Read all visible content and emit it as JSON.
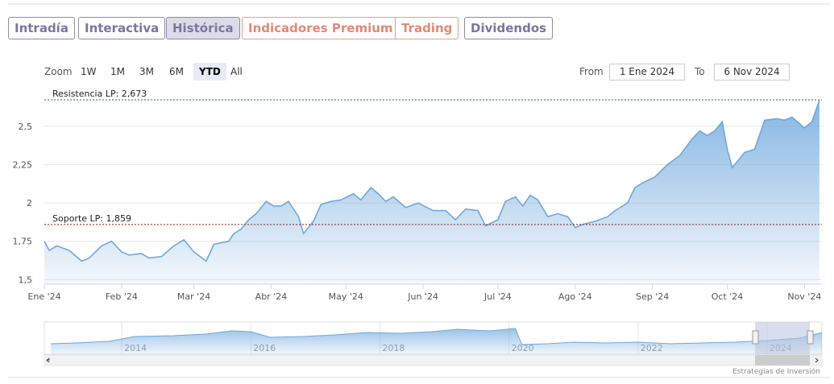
{
  "tabs": [
    "Intradía",
    "Interactiva",
    "Histórica",
    "Indicadores Premium",
    "Trading",
    "Dividendos"
  ],
  "active_tab": 2,
  "zoom": {
    "label": "Zoom",
    "buttons": [
      "1W",
      "1M",
      "3M",
      "6M",
      "YTD",
      "All"
    ],
    "active": 4
  },
  "range": {
    "from_label": "From",
    "from": "1 Ene 2024",
    "to_label": "To",
    "to": "6 Nov 2024"
  },
  "chart_data": {
    "type": "area",
    "color": "#6fa8dc",
    "x": [
      0,
      2,
      5,
      10,
      15,
      18,
      23,
      27,
      31,
      34,
      39,
      42,
      47,
      52,
      56,
      60,
      65,
      68,
      74,
      76,
      79,
      82,
      85,
      89,
      92,
      95,
      98,
      102,
      104,
      108,
      111,
      115,
      119,
      124,
      127,
      131,
      134,
      137,
      140,
      145,
      150,
      156,
      161,
      165,
      169,
      174,
      177,
      182,
      185,
      189,
      192,
      195,
      198,
      202,
      206,
      210,
      213,
      216,
      221,
      226,
      229,
      234,
      237,
      240,
      245,
      250,
      255,
      260,
      263,
      266,
      269,
      272,
      274,
      276,
      281,
      285,
      289,
      294,
      297,
      300,
      305,
      308,
      311
    ],
    "values": [
      1.75,
      1.69,
      1.72,
      1.69,
      1.62,
      1.64,
      1.72,
      1.75,
      1.68,
      1.66,
      1.67,
      1.64,
      1.65,
      1.72,
      1.76,
      1.68,
      1.62,
      1.73,
      1.75,
      1.8,
      1.83,
      1.89,
      1.93,
      2.01,
      1.98,
      1.98,
      2.01,
      1.91,
      1.8,
      1.88,
      1.99,
      2.01,
      2.02,
      2.06,
      2.02,
      2.1,
      2.06,
      2.01,
      2.04,
      1.97,
      2.0,
      1.95,
      1.95,
      1.89,
      1.96,
      1.95,
      1.85,
      1.89,
      2.01,
      2.04,
      1.98,
      2.05,
      2.02,
      1.91,
      1.93,
      1.91,
      1.84,
      1.86,
      1.88,
      1.91,
      1.95,
      2.0,
      2.1,
      2.13,
      2.17,
      2.25,
      2.31,
      2.42,
      2.47,
      2.44,
      2.47,
      2.53,
      2.35,
      2.23,
      2.33,
      2.35,
      2.54,
      2.55,
      2.54,
      2.56,
      2.49,
      2.53,
      2.67
    ],
    "xlim": [
      0,
      312
    ],
    "xticks": [
      {
        "value": 0,
        "label": "Ene '24"
      },
      {
        "value": 31,
        "label": "Feb '24"
      },
      {
        "value": 60,
        "label": "Mar '24"
      },
      {
        "value": 91,
        "label": "Abr '24"
      },
      {
        "value": 121,
        "label": "May '24"
      },
      {
        "value": 152,
        "label": "Jun '24"
      },
      {
        "value": 182,
        "label": "Jul '24"
      },
      {
        "value": 213,
        "label": "Ago '24"
      },
      {
        "value": 244,
        "label": "Sep '24"
      },
      {
        "value": 274,
        "label": "Oct '24"
      },
      {
        "value": 305,
        "label": "Nov '24"
      }
    ],
    "ylim": [
      1.47,
      2.72
    ],
    "yticks": [
      {
        "value": 1.5,
        "label": "1,5"
      },
      {
        "value": 1.75,
        "label": "1,75"
      },
      2,
      {
        "value": 2.25,
        "label": "2,25"
      },
      {
        "value": 2.5,
        "label": "2,5"
      }
    ],
    "grid": true,
    "annotations": [
      {
        "label": "Resistencia LP: 2,673",
        "value": 2.673,
        "color": "#2e6b3a"
      },
      {
        "label": "Soporte LP: 1,859",
        "value": 1.859,
        "color": "#8b1a1a"
      }
    ]
  },
  "navigator": {
    "x": [
      2012.9,
      2013.3,
      2013.8,
      2014.2,
      2014.8,
      2015.3,
      2015.7,
      2016.0,
      2016.3,
      2016.8,
      2017.3,
      2017.8,
      2018.3,
      2018.8,
      2019.2,
      2019.7,
      2020.1,
      2020.2,
      2020.6,
      2021.0,
      2021.5,
      2022.0,
      2022.5,
      2023.0,
      2023.5,
      2024.0,
      2024.5,
      2024.85
    ],
    "values": [
      1.3,
      1.4,
      1.6,
      2.2,
      2.3,
      2.5,
      2.9,
      2.8,
      2.1,
      2.2,
      2.4,
      2.7,
      2.6,
      2.8,
      3.1,
      2.9,
      3.2,
      1.2,
      1.3,
      1.5,
      1.4,
      1.5,
      1.3,
      1.4,
      1.5,
      1.7,
      2.0,
      2.67
    ],
    "xlim": [
      2012.8,
      2024.85
    ],
    "ylim": [
      0,
      4
    ],
    "xticks": [
      2014,
      2016,
      2018,
      2020,
      2022,
      2024
    ]
  },
  "credit": "Estrategias de Inversión"
}
